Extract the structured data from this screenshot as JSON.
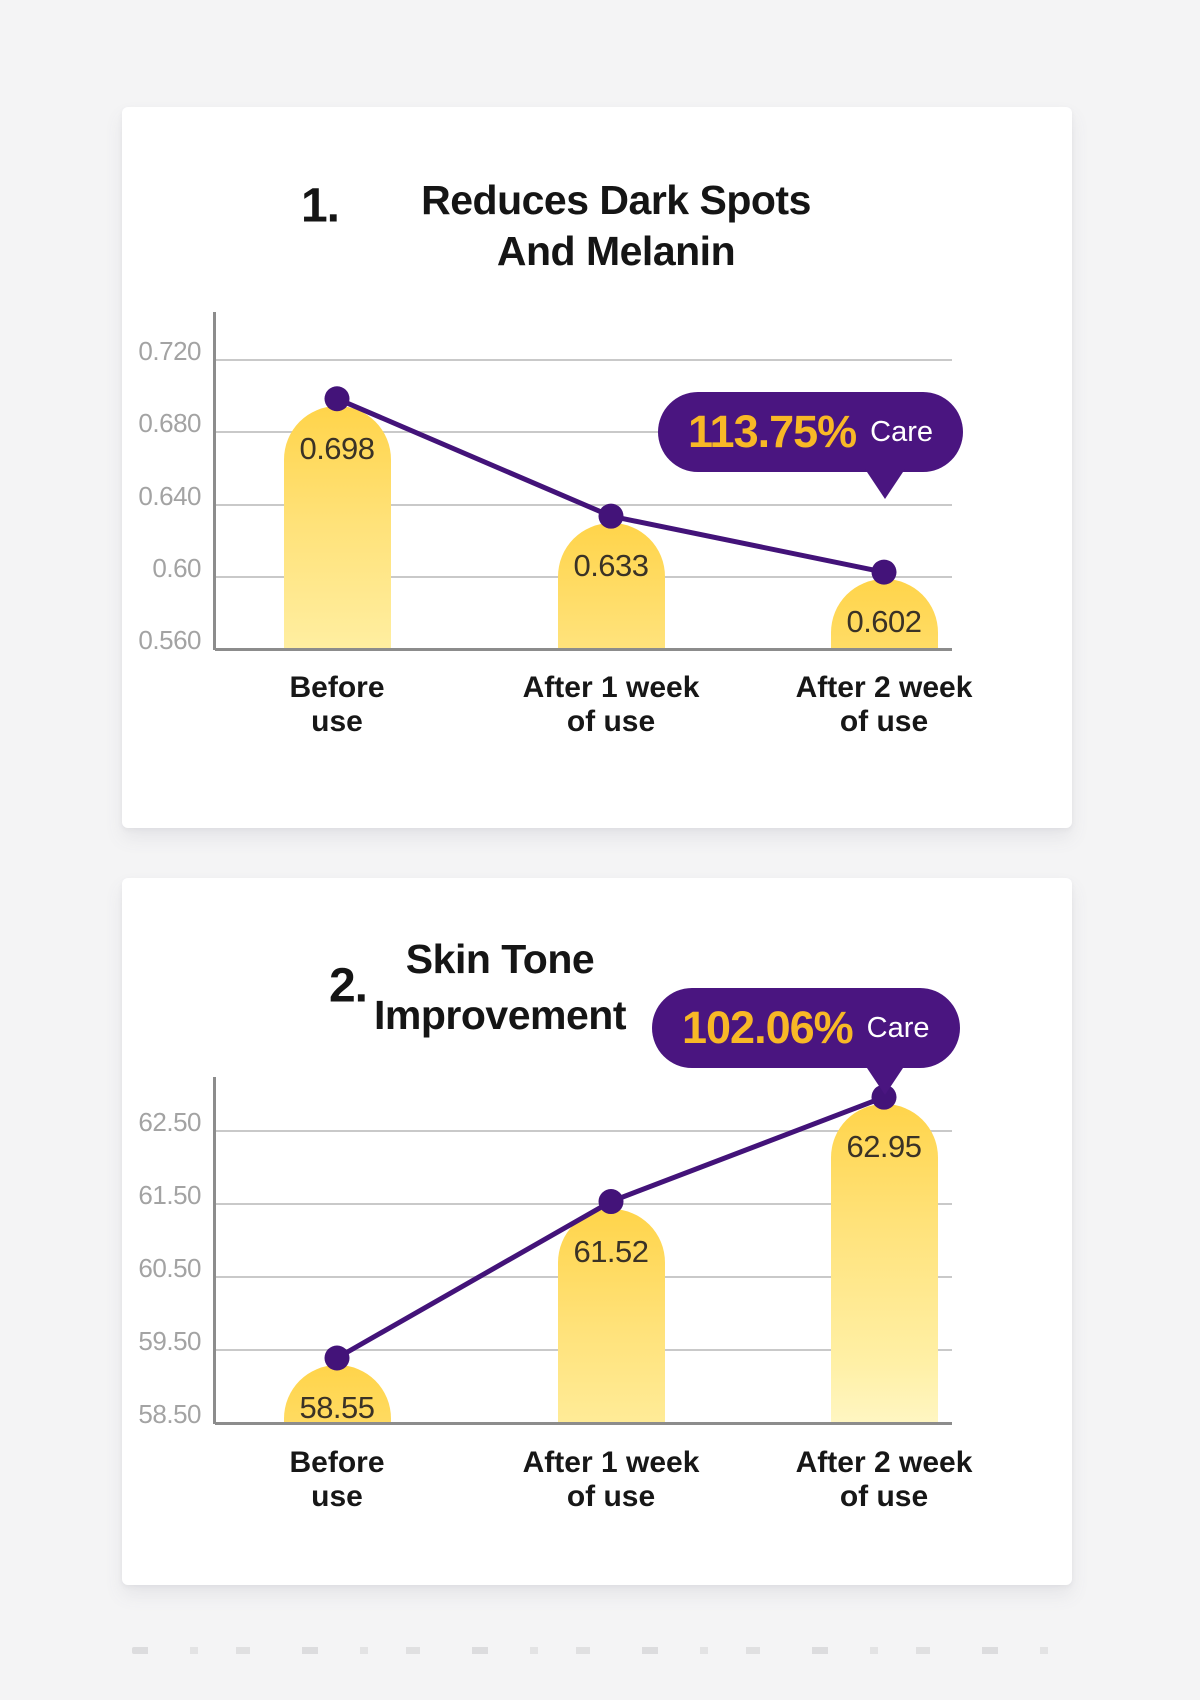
{
  "page": {
    "background": "#f4f4f5",
    "card_background": "#ffffff"
  },
  "colors": {
    "bar_gradient_top": "#ffd44a",
    "bar_gradient_bottom": "#fff6c2",
    "trend_line": "#431379",
    "data_dot": "#431379",
    "badge_background": "#4a1580",
    "badge_percent_text": "#f8b826",
    "badge_care_text": "#ffffff",
    "gridline": "#c9c9c9",
    "axis": "#8c8c8c",
    "ytick_text": "#a3a3a3",
    "title_text": "#151515",
    "bar_value_text": "#3a3226",
    "xlabel_text": "#171717"
  },
  "charts": [
    {
      "index_label": "1.",
      "title_lines": [
        "Reduces Dark Spots",
        "And Melanin"
      ],
      "badge": {
        "value": "113.75%",
        "label": "Care"
      },
      "chart_data": {
        "type": "bar+line",
        "categories": [
          [
            "Before",
            "use"
          ],
          [
            "After 1 week",
            "of use"
          ],
          [
            "After 2 week",
            "of use"
          ]
        ],
        "values": [
          0.698,
          0.633,
          0.602
        ],
        "value_labels": [
          "0.698",
          "0.633",
          "0.602"
        ],
        "ytick_labels": [
          "0.720",
          "0.680",
          "0.640",
          "0.60",
          "0.560"
        ],
        "ytick_values": [
          0.72,
          0.68,
          0.64,
          0.6,
          0.56
        ],
        "ylim": [
          0.56,
          0.743
        ],
        "xlabel": "",
        "ylabel": "",
        "grid": true,
        "legend": "none",
        "note": "yellow rounded-top bars with purple trend line and dot markers"
      }
    },
    {
      "index_label": "2.",
      "title_lines": [
        "Skin Tone",
        "Improvement"
      ],
      "badge": {
        "value": "102.06%",
        "label": "Care"
      },
      "chart_data": {
        "type": "bar+line",
        "categories": [
          [
            "Before",
            "use"
          ],
          [
            "After 1 week",
            "of use"
          ],
          [
            "After 2 week",
            "of use"
          ]
        ],
        "values": [
          58.55,
          61.52,
          62.95
        ],
        "value_labels": [
          "58.55",
          "61.52",
          "62.95"
        ],
        "ytick_labels": [
          "62.50",
          "61.50",
          "60.50",
          "59.50",
          "58.50"
        ],
        "ytick_values": [
          62.5,
          61.5,
          60.5,
          59.5,
          58.5
        ],
        "ylim": [
          58.5,
          63.1
        ],
        "xlabel": "",
        "ylabel": "",
        "grid": true,
        "legend": "none",
        "note": "yellow rounded-top bars with purple trend line and dot markers"
      }
    }
  ]
}
